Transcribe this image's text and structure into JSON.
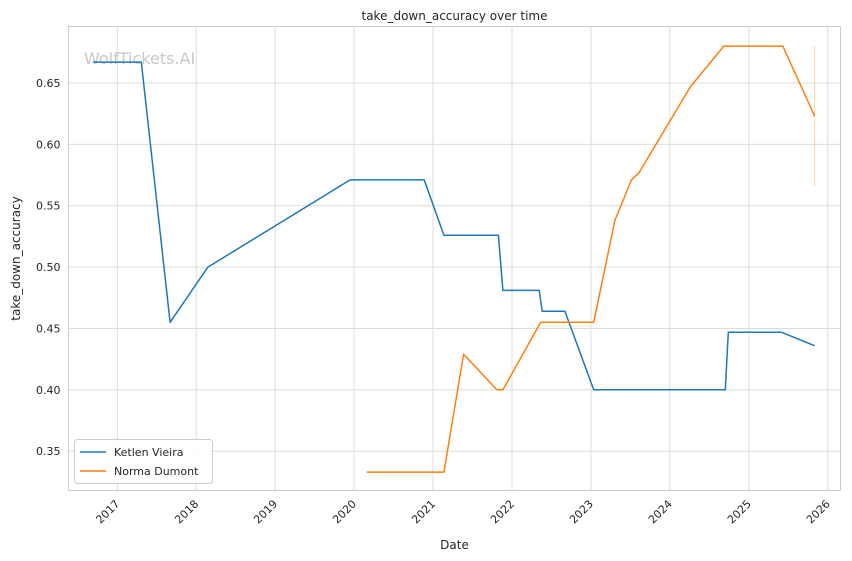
{
  "chart_data": {
    "type": "line",
    "title": "take_down_accuracy over time",
    "xlabel": "Date",
    "ylabel": "take_down_accuracy",
    "watermark": "WolfTickets.AI",
    "xlim": [
      "2016-05-20",
      "2026-03-01"
    ],
    "ylim": [
      0.318,
      0.696
    ],
    "x_ticks": [
      "2017",
      "2018",
      "2019",
      "2020",
      "2021",
      "2022",
      "2023",
      "2024",
      "2025",
      "2026"
    ],
    "y_ticks": [
      0.35,
      0.4,
      0.45,
      0.5,
      0.55,
      0.6,
      0.65
    ],
    "y_tick_labels": [
      "0.35",
      "0.40",
      "0.45",
      "0.50",
      "0.55",
      "0.60",
      "0.65"
    ],
    "grid": true,
    "legend_position": "lower-left",
    "series": [
      {
        "name": "Ketlen Vieira",
        "color": "#1f77b4",
        "points": [
          [
            "2016-09-10",
            0.667
          ],
          [
            "2017-04-22",
            0.667
          ],
          [
            "2017-09-02",
            0.455
          ],
          [
            "2018-02-24",
            0.5
          ],
          [
            "2019-12-14",
            0.571
          ],
          [
            "2020-11-21",
            0.571
          ],
          [
            "2021-02-20",
            0.526
          ],
          [
            "2021-10-30",
            0.526
          ],
          [
            "2021-11-20",
            0.481
          ],
          [
            "2022-05-07",
            0.481
          ],
          [
            "2022-05-21",
            0.464
          ],
          [
            "2022-09-03",
            0.464
          ],
          [
            "2023-01-14",
            0.4
          ],
          [
            "2024-09-14",
            0.4
          ],
          [
            "2024-09-28",
            0.447
          ],
          [
            "2025-05-31",
            0.447
          ],
          [
            "2025-11-01",
            0.436
          ]
        ]
      },
      {
        "name": "Norma Dumont",
        "color": "#ff7f0e",
        "points": [
          [
            "2020-02-29",
            0.333
          ],
          [
            "2021-02-20",
            0.333
          ],
          [
            "2021-05-22",
            0.429
          ],
          [
            "2021-10-23",
            0.4
          ],
          [
            "2021-11-20",
            0.4
          ],
          [
            "2022-05-14",
            0.455
          ],
          [
            "2023-01-14",
            0.455
          ],
          [
            "2023-04-22",
            0.538
          ],
          [
            "2023-07-08",
            0.571
          ],
          [
            "2023-08-12",
            0.577
          ],
          [
            "2024-04-06",
            0.647
          ],
          [
            "2024-09-07",
            0.68
          ],
          [
            "2025-06-07",
            0.68
          ],
          [
            "2025-11-01",
            0.623
          ]
        ],
        "error_bar": {
          "x": "2025-11-01",
          "low": 0.566,
          "high": 0.68
        }
      }
    ]
  }
}
